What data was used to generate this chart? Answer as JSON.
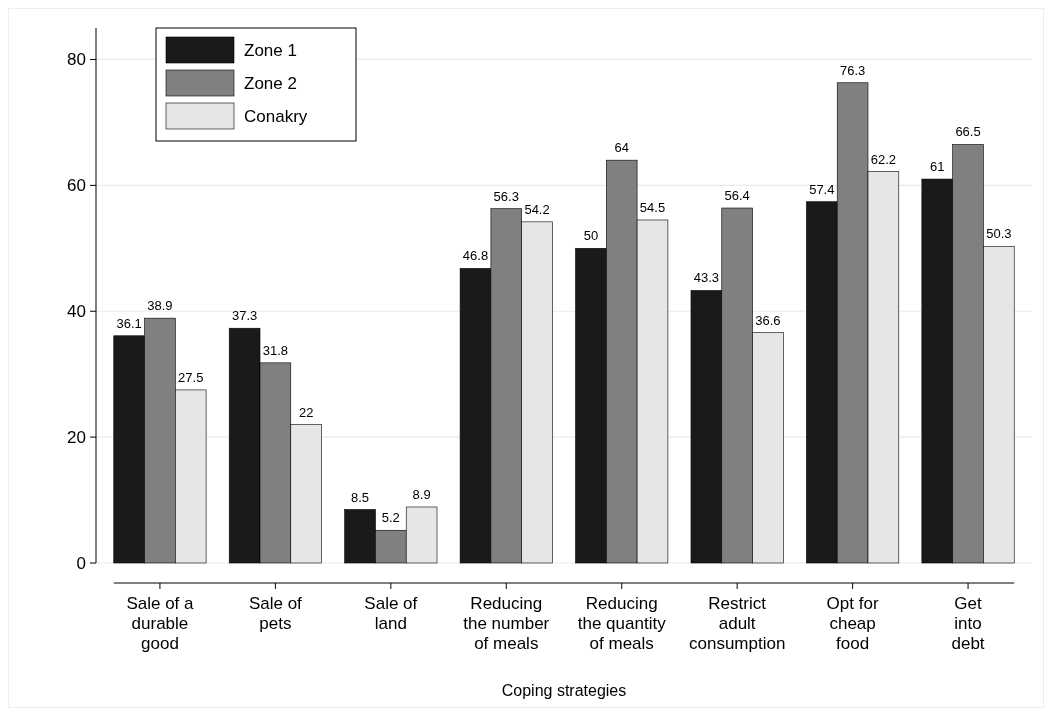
{
  "chart_data": {
    "type": "bar",
    "xlabel": "Coping strategies",
    "categories": [
      "Sale of a\ndurable\ngood",
      "Sale of\npets",
      "Sale of\nland",
      "Reducing\nthe number\nof meals",
      "Reducing\nthe quantity\nof meals",
      "Restrict\nadult\nconsumption",
      "Opt for\ncheap\nfood",
      "Get\ninto\ndebt"
    ],
    "series": [
      {
        "name": "Zone 1",
        "color": "#1a1a1a",
        "values": [
          36.1,
          37.3,
          8.5,
          46.8,
          50,
          43.3,
          57.4,
          61
        ]
      },
      {
        "name": "Zone 2",
        "color": "#808080",
        "values": [
          38.9,
          31.8,
          5.2,
          56.3,
          64,
          56.4,
          76.3,
          66.5
        ]
      },
      {
        "name": "Conakry",
        "color": "#e6e6e6",
        "values": [
          27.5,
          22,
          8.9,
          54.2,
          54.5,
          36.6,
          62.2,
          50.3
        ]
      }
    ],
    "ylim": [
      0,
      85
    ],
    "yticks": [
      0,
      20,
      40,
      60,
      80
    ],
    "grid": "y",
    "legend": "top left",
    "data_labels": true
  }
}
